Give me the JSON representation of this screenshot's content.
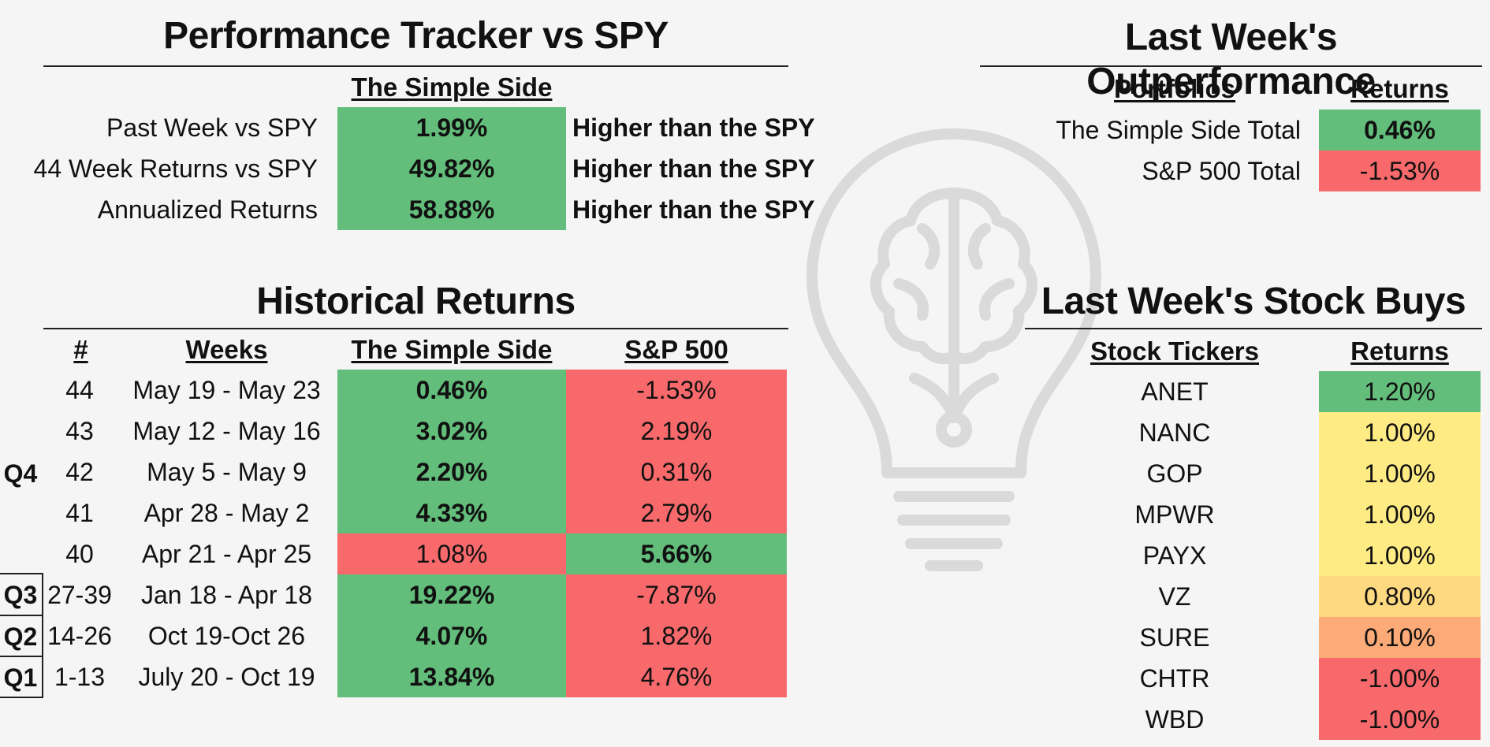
{
  "tracker": {
    "title": "Performance Tracker vs SPY",
    "column_header": "The Simple Side",
    "rows": [
      {
        "label": "Past Week vs SPY",
        "value": "1.99%",
        "note": "Higher than the SPY"
      },
      {
        "label": "44 Week Returns vs SPY",
        "value": "49.82%",
        "note": "Higher than the SPY"
      },
      {
        "label": "Annualized Returns",
        "value": "58.88%",
        "note": "Higher than the SPY"
      }
    ]
  },
  "outperformance": {
    "title": "Last Week's Outperformance",
    "headers": [
      "Portfolios",
      "Returns"
    ],
    "rows": [
      {
        "label": "The Simple Side Total",
        "value": "0.46%",
        "color": "#63be7b"
      },
      {
        "label": "S&P 500 Total",
        "value": "-1.53%",
        "color": "#f8696b"
      }
    ]
  },
  "history": {
    "title": "Historical Returns",
    "headers": [
      "#",
      "Weeks",
      "The Simple Side",
      "S&P 500"
    ],
    "quarter_labels": [
      "Q4",
      "Q3",
      "Q2",
      "Q1"
    ],
    "rows": [
      {
        "num": "44",
        "weeks": "May 19 - May 23",
        "tss": "0.46%",
        "sp": "-1.53%",
        "tss_color": "green",
        "sp_color": "red",
        "tss_bold": true,
        "sp_bold": false
      },
      {
        "num": "43",
        "weeks": "May 12 - May 16",
        "tss": "3.02%",
        "sp": "2.19%",
        "tss_color": "green",
        "sp_color": "red",
        "tss_bold": true,
        "sp_bold": false
      },
      {
        "num": "42",
        "weeks": "May 5 - May 9",
        "tss": "2.20%",
        "sp": "0.31%",
        "tss_color": "green",
        "sp_color": "red",
        "tss_bold": true,
        "sp_bold": false
      },
      {
        "num": "41",
        "weeks": "Apr 28 - May 2",
        "tss": "4.33%",
        "sp": "2.79%",
        "tss_color": "green",
        "sp_color": "red",
        "tss_bold": true,
        "sp_bold": false
      },
      {
        "num": "40",
        "weeks": "Apr 21 - Apr 25",
        "tss": "1.08%",
        "sp": "5.66%",
        "tss_color": "red",
        "sp_color": "green",
        "tss_bold": false,
        "sp_bold": true
      },
      {
        "num": "27-39",
        "weeks": "Jan 18 - Apr 18",
        "tss": "19.22%",
        "sp": "-7.87%",
        "tss_color": "green",
        "sp_color": "red",
        "tss_bold": true,
        "sp_bold": false
      },
      {
        "num": "14-26",
        "weeks": "Oct 19-Oct 26",
        "tss": "4.07%",
        "sp": "1.82%",
        "tss_color": "green",
        "sp_color": "red",
        "tss_bold": true,
        "sp_bold": false
      },
      {
        "num": "1-13",
        "weeks": "July 20 - Oct 19",
        "tss": "13.84%",
        "sp": "4.76%",
        "tss_color": "green",
        "sp_color": "red",
        "tss_bold": true,
        "sp_bold": false
      }
    ]
  },
  "buys": {
    "title": "Last Week's Stock Buys",
    "headers": [
      "Stock Tickers",
      "Returns"
    ],
    "rows": [
      {
        "ticker": "ANET",
        "value": "1.20%",
        "color": "green"
      },
      {
        "ticker": "NANC",
        "value": "1.00%",
        "color": "yellow"
      },
      {
        "ticker": "GOP",
        "value": "1.00%",
        "color": "yellow"
      },
      {
        "ticker": "MPWR",
        "value": "1.00%",
        "color": "yellow"
      },
      {
        "ticker": "PAYX",
        "value": "1.00%",
        "color": "yellow"
      },
      {
        "ticker": "VZ",
        "value": "0.80%",
        "color": "lorange"
      },
      {
        "ticker": "SURE",
        "value": "0.10%",
        "color": "orange"
      },
      {
        "ticker": "CHTR",
        "value": "-1.00%",
        "color": "red"
      },
      {
        "ticker": "WBD",
        "value": "-1.00%",
        "color": "red"
      }
    ]
  },
  "watermark": {
    "icon": "lightbulb-brain-icon"
  }
}
